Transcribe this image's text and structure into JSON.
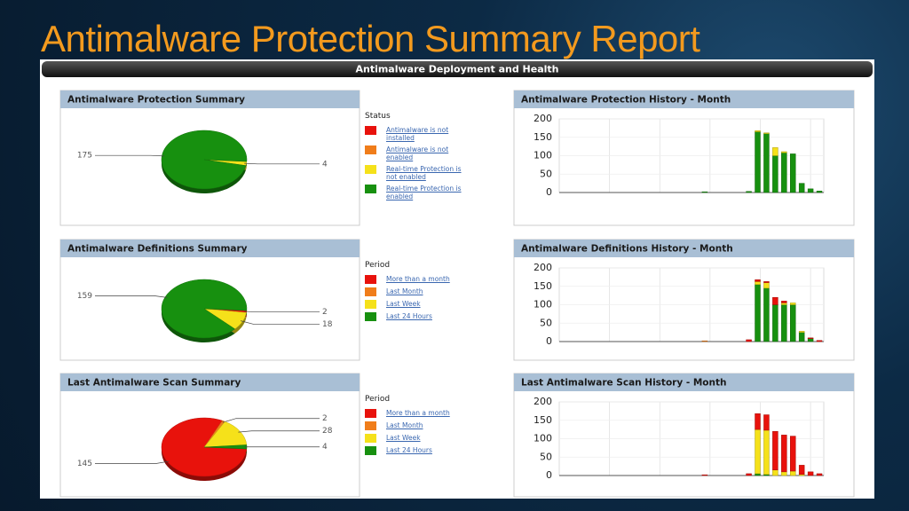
{
  "title": "Antimalware Protection Summary Report",
  "header": "Antimalware Deployment and Health",
  "chart_data": [
    {
      "type": "pie",
      "title": "Antimalware Protection Summary",
      "legend_title": "Status",
      "categories": [
        "Antimalware is not installed",
        "Antimalware is not enabled",
        "Real-time Protection is not enabled",
        "Real-time Protection is enabled"
      ],
      "values": [
        0,
        0,
        4,
        175
      ],
      "colors": [
        "#e8120c",
        "#f07d1a",
        "#f5e11a",
        "#17900f"
      ]
    },
    {
      "type": "bar",
      "stacked": true,
      "title": "Antimalware Protection History - Month",
      "categories": [
        null,
        null,
        null,
        null,
        null,
        null,
        null,
        null,
        null,
        null,
        null,
        null,
        null,
        null,
        null,
        null,
        null,
        null,
        null,
        null,
        null,
        null,
        null,
        null,
        null,
        null,
        null,
        null,
        null,
        null
      ],
      "series": [
        {
          "color": "#e8120c",
          "values": [
            0,
            0,
            0,
            0,
            0,
            0,
            0,
            0,
            0,
            0,
            0,
            0,
            0,
            0,
            0,
            0,
            0,
            0,
            0,
            0,
            0,
            0,
            0,
            0,
            0,
            0,
            0,
            0,
            0,
            0
          ]
        },
        {
          "color": "#f07d1a",
          "values": [
            0,
            0,
            0,
            0,
            0,
            0,
            0,
            0,
            0,
            0,
            0,
            0,
            0,
            0,
            0,
            0,
            0,
            0,
            0,
            0,
            0,
            0,
            0,
            0,
            0,
            0,
            0,
            0,
            0,
            0
          ]
        },
        {
          "color": "#f5e11a",
          "values": [
            0,
            0,
            0,
            0,
            0,
            0,
            0,
            0,
            0,
            0,
            0,
            0,
            0,
            0,
            0,
            0,
            0,
            0,
            0,
            0,
            0,
            0,
            3,
            2,
            22,
            3,
            0,
            0,
            0,
            0
          ]
        },
        {
          "color": "#17900f",
          "values": [
            0,
            0,
            0,
            0,
            0,
            0,
            0,
            0,
            0,
            0,
            0,
            0,
            0,
            0,
            0,
            0,
            2,
            0,
            0,
            0,
            0,
            3,
            165,
            160,
            100,
            108,
            105,
            25,
            10,
            4
          ]
        }
      ],
      "ylim": [
        0,
        200
      ],
      "yticks": [
        0,
        50,
        100,
        150,
        200
      ],
      "grid": true
    },
    {
      "type": "pie",
      "title": "Antimalware Definitions Summary",
      "legend_title": "Period",
      "categories": [
        "More than a month",
        "Last Month",
        "Last Week",
        "Last 24 Hours"
      ],
      "values": [
        2,
        0,
        18,
        159
      ],
      "colors": [
        "#e8120c",
        "#f07d1a",
        "#f5e11a",
        "#17900f"
      ]
    },
    {
      "type": "bar",
      "stacked": true,
      "title": "Antimalware Definitions History - Month",
      "categories": [
        null,
        null,
        null,
        null,
        null,
        null,
        null,
        null,
        null,
        null,
        null,
        null,
        null,
        null,
        null,
        null,
        null,
        null,
        null,
        null,
        null,
        null,
        null,
        null,
        null,
        null,
        null,
        null,
        null,
        null
      ],
      "series": [
        {
          "color": "#e8120c",
          "values": [
            0,
            0,
            0,
            0,
            0,
            0,
            0,
            0,
            0,
            0,
            0,
            0,
            0,
            0,
            0,
            0,
            0,
            0,
            0,
            0,
            0,
            5,
            5,
            3,
            20,
            5,
            0,
            0,
            2,
            3
          ]
        },
        {
          "color": "#f07d1a",
          "values": [
            0,
            0,
            0,
            0,
            0,
            0,
            0,
            0,
            0,
            0,
            0,
            0,
            0,
            0,
            0,
            0,
            2,
            0,
            0,
            0,
            0,
            0,
            0,
            0,
            0,
            0,
            0,
            0,
            0,
            0
          ]
        },
        {
          "color": "#f5e11a",
          "values": [
            0,
            0,
            0,
            0,
            0,
            0,
            0,
            0,
            0,
            0,
            0,
            0,
            0,
            0,
            0,
            0,
            0,
            0,
            0,
            0,
            0,
            0,
            8,
            15,
            0,
            5,
            5,
            3,
            0,
            0
          ]
        },
        {
          "color": "#17900f",
          "values": [
            0,
            0,
            0,
            0,
            0,
            0,
            0,
            0,
            0,
            0,
            0,
            0,
            0,
            0,
            0,
            0,
            0,
            0,
            0,
            0,
            0,
            0,
            155,
            145,
            100,
            100,
            100,
            25,
            8,
            0
          ]
        }
      ],
      "ylim": [
        0,
        200
      ],
      "yticks": [
        0,
        50,
        100,
        150,
        200
      ],
      "grid": true
    },
    {
      "type": "pie",
      "title": "Last Antimalware Scan Summary",
      "legend_title": "Period",
      "categories": [
        "More than a month",
        "Last Month",
        "Last Week",
        "Last 24 Hours"
      ],
      "values": [
        145,
        2,
        28,
        4
      ],
      "colors": [
        "#e8120c",
        "#f07d1a",
        "#f5e11a",
        "#17900f"
      ]
    },
    {
      "type": "bar",
      "stacked": true,
      "title": "Last Antimalware Scan History - Month",
      "categories": [
        null,
        null,
        null,
        null,
        null,
        null,
        null,
        null,
        null,
        null,
        null,
        null,
        null,
        null,
        null,
        null,
        null,
        null,
        null,
        null,
        null,
        null,
        null,
        null,
        null,
        null,
        null,
        null,
        null,
        null
      ],
      "series": [
        {
          "color": "#e8120c",
          "values": [
            0,
            0,
            0,
            0,
            0,
            0,
            0,
            0,
            0,
            0,
            0,
            0,
            0,
            0,
            0,
            0,
            2,
            0,
            0,
            0,
            0,
            5,
            43,
            42,
            105,
            100,
            95,
            25,
            10,
            5
          ]
        },
        {
          "color": "#f07d1a",
          "values": [
            0,
            0,
            0,
            0,
            0,
            0,
            0,
            0,
            0,
            0,
            0,
            0,
            0,
            0,
            0,
            0,
            0,
            0,
            0,
            0,
            0,
            0,
            0,
            0,
            0,
            0,
            0,
            0,
            0,
            0
          ]
        },
        {
          "color": "#f5e11a",
          "values": [
            0,
            0,
            0,
            0,
            0,
            0,
            0,
            0,
            0,
            0,
            0,
            0,
            0,
            0,
            0,
            0,
            0,
            0,
            0,
            0,
            0,
            0,
            120,
            120,
            15,
            10,
            12,
            3,
            0,
            0
          ]
        },
        {
          "color": "#17900f",
          "values": [
            0,
            0,
            0,
            0,
            0,
            0,
            0,
            0,
            0,
            0,
            0,
            0,
            0,
            0,
            0,
            0,
            0,
            0,
            0,
            0,
            0,
            0,
            5,
            3,
            0,
            0,
            0,
            0,
            0,
            0
          ]
        }
      ],
      "ylim": [
        0,
        200
      ],
      "yticks": [
        0,
        50,
        100,
        150,
        200
      ],
      "grid": true
    }
  ]
}
